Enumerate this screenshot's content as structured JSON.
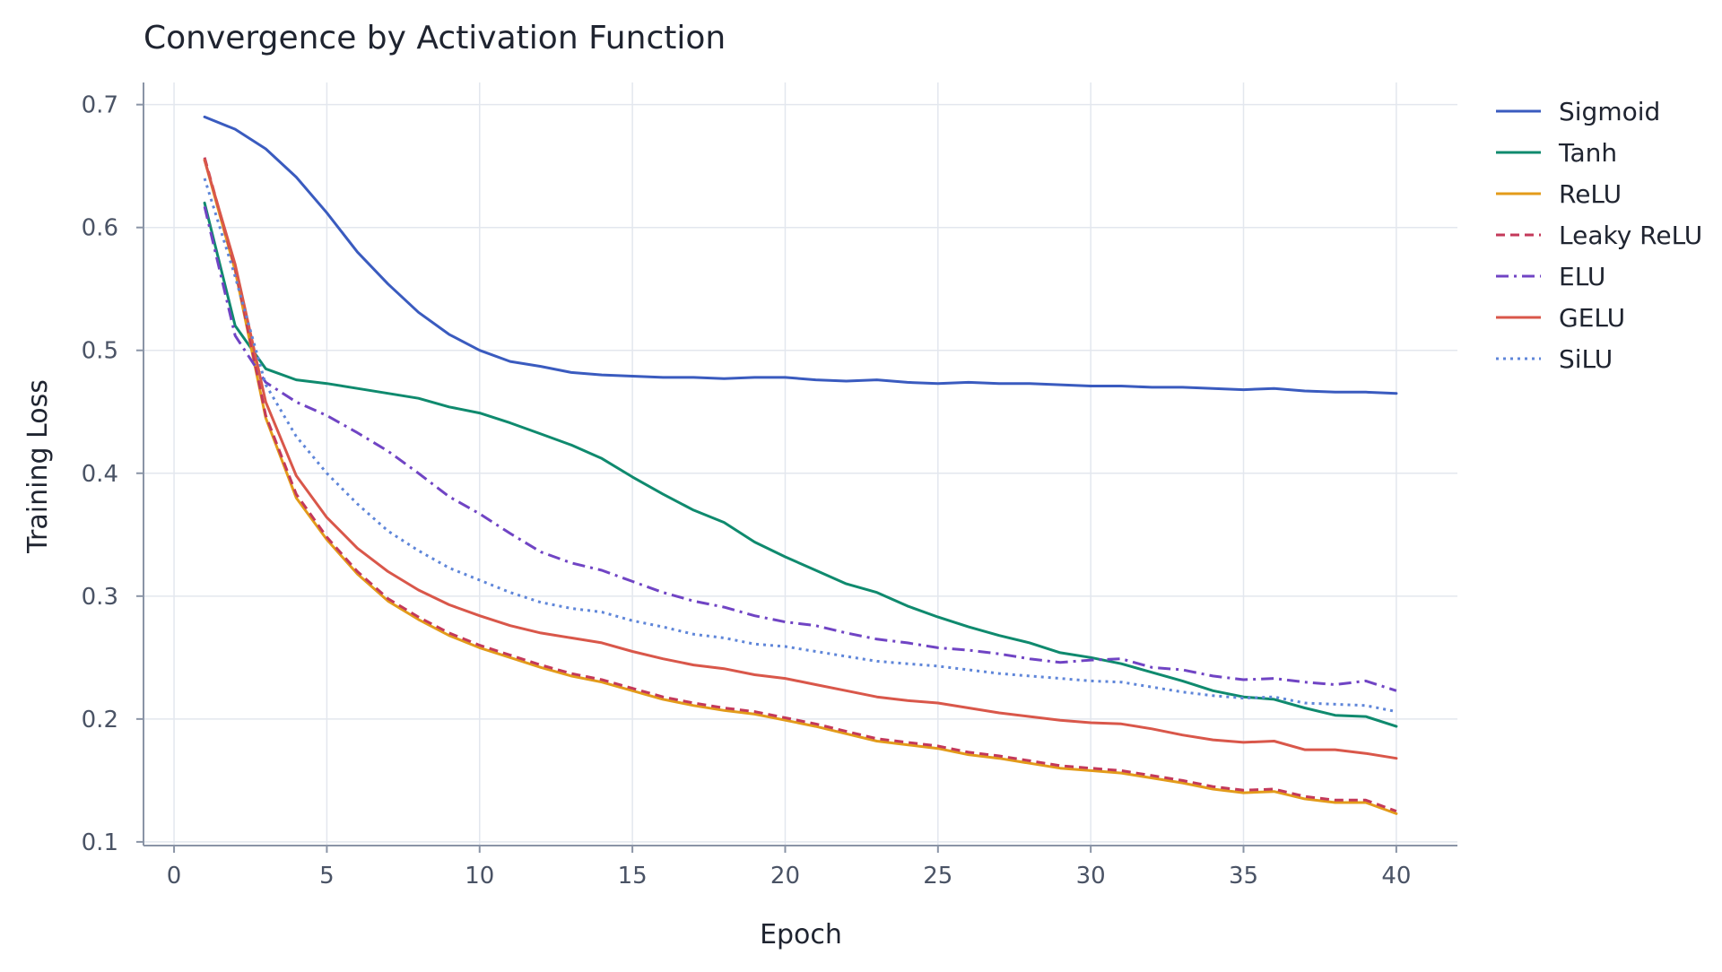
{
  "chart_data": {
    "type": "line",
    "title": "Convergence by Activation Function",
    "xlabel": "Epoch",
    "ylabel": "Training Loss",
    "xlim": [
      -1,
      42
    ],
    "ylim": [
      0.097,
      0.718
    ],
    "xticks": [
      0,
      5,
      10,
      15,
      20,
      25,
      30,
      35,
      40
    ],
    "xtick_labels": [
      "0",
      "5",
      "10",
      "15",
      "20",
      "25",
      "30",
      "35",
      "40"
    ],
    "yticks": [
      0.1,
      0.2,
      0.3,
      0.4,
      0.5,
      0.6,
      0.7
    ],
    "ytick_labels": [
      "0.1",
      "0.2",
      "0.3",
      "0.4",
      "0.5",
      "0.6",
      "0.7"
    ],
    "grid": true,
    "legend": "right",
    "x": [
      1,
      2,
      3,
      4,
      5,
      6,
      7,
      8,
      9,
      10,
      11,
      12,
      13,
      14,
      15,
      16,
      17,
      18,
      19,
      20,
      21,
      22,
      23,
      24,
      25,
      26,
      27,
      28,
      29,
      30,
      31,
      32,
      33,
      34,
      35,
      36,
      37,
      38,
      39,
      40
    ],
    "series": [
      {
        "name": "Sigmoid",
        "color": "#3a5bbf",
        "dash": "solid",
        "values": [
          0.69,
          0.68,
          0.664,
          0.641,
          0.612,
          0.58,
          0.554,
          0.531,
          0.513,
          0.5,
          0.491,
          0.487,
          0.482,
          0.48,
          0.479,
          0.478,
          0.478,
          0.477,
          0.478,
          0.478,
          0.476,
          0.475,
          0.476,
          0.474,
          0.473,
          0.474,
          0.473,
          0.473,
          0.472,
          0.471,
          0.471,
          0.47,
          0.47,
          0.469,
          0.468,
          0.469,
          0.467,
          0.466,
          0.466,
          0.465
        ]
      },
      {
        "name": "Tanh",
        "color": "#0f8a6e",
        "dash": "solid",
        "values": [
          0.62,
          0.52,
          0.485,
          0.476,
          0.473,
          0.469,
          0.465,
          0.461,
          0.454,
          0.449,
          0.441,
          0.432,
          0.423,
          0.412,
          0.397,
          0.383,
          0.37,
          0.36,
          0.344,
          0.332,
          0.321,
          0.31,
          0.303,
          0.292,
          0.283,
          0.275,
          0.268,
          0.262,
          0.254,
          0.25,
          0.245,
          0.238,
          0.231,
          0.223,
          0.218,
          0.216,
          0.209,
          0.203,
          0.202,
          0.194
        ]
      },
      {
        "name": "ReLU",
        "color": "#e39b1a",
        "dash": "solid",
        "values": [
          0.655,
          0.565,
          0.445,
          0.38,
          0.346,
          0.318,
          0.296,
          0.281,
          0.268,
          0.258,
          0.25,
          0.242,
          0.235,
          0.23,
          0.223,
          0.216,
          0.211,
          0.207,
          0.204,
          0.199,
          0.194,
          0.188,
          0.182,
          0.179,
          0.176,
          0.171,
          0.168,
          0.164,
          0.16,
          0.158,
          0.156,
          0.152,
          0.148,
          0.143,
          0.14,
          0.141,
          0.135,
          0.132,
          0.132,
          0.123
        ]
      },
      {
        "name": "Leaky ReLU",
        "color": "#c4395a",
        "dash": "dashed",
        "values": [
          0.657,
          0.567,
          0.447,
          0.383,
          0.348,
          0.32,
          0.298,
          0.283,
          0.27,
          0.26,
          0.252,
          0.244,
          0.237,
          0.232,
          0.225,
          0.218,
          0.213,
          0.209,
          0.206,
          0.201,
          0.196,
          0.19,
          0.184,
          0.181,
          0.178,
          0.173,
          0.17,
          0.166,
          0.162,
          0.16,
          0.158,
          0.154,
          0.15,
          0.145,
          0.142,
          0.143,
          0.137,
          0.134,
          0.134,
          0.125
        ]
      },
      {
        "name": "ELU",
        "color": "#7044c4",
        "dash": "dashdot",
        "values": [
          0.617,
          0.512,
          0.474,
          0.458,
          0.447,
          0.433,
          0.418,
          0.4,
          0.381,
          0.367,
          0.351,
          0.336,
          0.327,
          0.321,
          0.312,
          0.303,
          0.296,
          0.291,
          0.284,
          0.279,
          0.276,
          0.27,
          0.265,
          0.262,
          0.258,
          0.256,
          0.253,
          0.249,
          0.246,
          0.248,
          0.249,
          0.242,
          0.24,
          0.235,
          0.232,
          0.233,
          0.23,
          0.228,
          0.231,
          0.223
        ]
      },
      {
        "name": "GELU",
        "color": "#d9574a",
        "dash": "solid",
        "values": [
          0.655,
          0.57,
          0.458,
          0.398,
          0.364,
          0.339,
          0.32,
          0.305,
          0.293,
          0.284,
          0.276,
          0.27,
          0.266,
          0.262,
          0.255,
          0.249,
          0.244,
          0.241,
          0.236,
          0.233,
          0.228,
          0.223,
          0.218,
          0.215,
          0.213,
          0.209,
          0.205,
          0.202,
          0.199,
          0.197,
          0.196,
          0.192,
          0.187,
          0.183,
          0.181,
          0.182,
          0.175,
          0.175,
          0.172,
          0.168
        ]
      },
      {
        "name": "SiLU",
        "color": "#5f86d9",
        "dash": "dotted",
        "values": [
          0.64,
          0.56,
          0.472,
          0.43,
          0.4,
          0.375,
          0.353,
          0.337,
          0.323,
          0.313,
          0.303,
          0.295,
          0.29,
          0.287,
          0.28,
          0.275,
          0.269,
          0.266,
          0.261,
          0.259,
          0.255,
          0.251,
          0.247,
          0.245,
          0.243,
          0.24,
          0.237,
          0.235,
          0.233,
          0.231,
          0.23,
          0.226,
          0.222,
          0.219,
          0.217,
          0.218,
          0.213,
          0.212,
          0.211,
          0.206
        ]
      }
    ]
  }
}
